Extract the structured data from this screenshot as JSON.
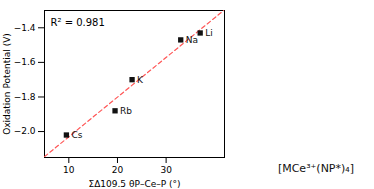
{
  "chart_data": {
    "type": "scatter",
    "xlabel": "ΣΔ109.5 θP–Ce–P (°)",
    "ylabel": "Oxidation Potential (V)",
    "x": [
      9.5,
      19.5,
      23.0,
      33.0,
      37.0
    ],
    "values": [
      -2.02,
      -1.88,
      -1.7,
      -1.47,
      -1.43
    ],
    "labels": [
      "Cs",
      "Rb",
      "K",
      "Na",
      "Li"
    ],
    "color": "#111111",
    "marker": "square",
    "fit_line": {
      "x": [
        5,
        41.83
      ],
      "values": [
        -2.1451,
        -1.3
      ],
      "color": "#FF5555",
      "line_style": "dashed"
    },
    "annotations": [
      "R² = 0.981",
      "[MCe³⁺(NP*)₄]"
    ],
    "xlim": [
      5,
      42
    ],
    "xticks": [
      10,
      20,
      30
    ],
    "ylim": [
      -2.15,
      -1.3
    ],
    "yticks": [
      {
        "value": -2.0,
        "label": "−2.0"
      },
      {
        "value": -1.8,
        "label": "−1.8"
      },
      {
        "value": -1.6,
        "label": "−1.6"
      },
      {
        "value": -1.4,
        "label": "−1.4"
      }
    ],
    "grid": false
  }
}
